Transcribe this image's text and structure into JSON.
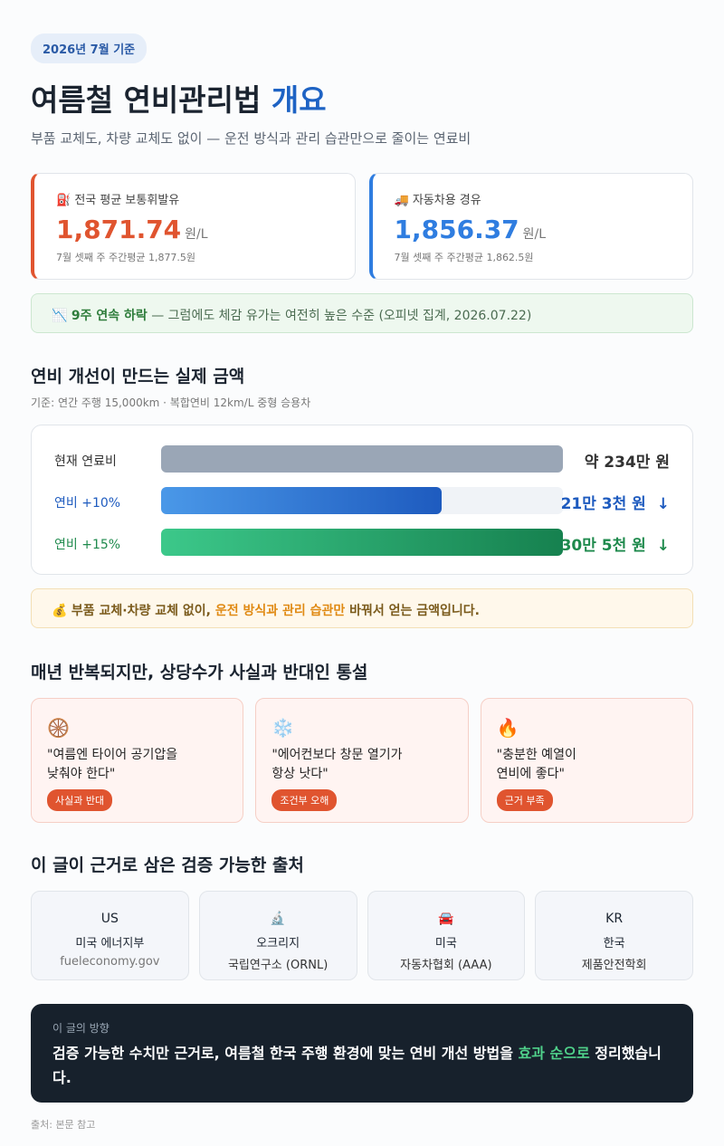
{
  "header": {
    "badge": "2026년 7월 기준",
    "title": "여름철 연비관리법 ",
    "title_highlight": "개요",
    "subtitle": "부품 교체도, 차량 교체도 없이 — 운전 방식과 관리 습관만으로 줄이는 연료비"
  },
  "prices": [
    {
      "icon": "⛽",
      "label": "전국 평균 보통휘발유",
      "price": "1,871.74",
      "unit": "원/L",
      "note": "7월 셋째 주 주간평균 1,877.5원"
    },
    {
      "icon": "🚚",
      "label": "자동차용 경유",
      "price": "1,856.37",
      "unit": "원/L",
      "note": "7월 셋째 주 주간평균 1,862.5원"
    }
  ],
  "trend_note": {
    "icon": "📉",
    "bold": "9주 연속 하락",
    "text": " — 그럼에도 체감 유가는 여전히 높은 수준 (오피넷 집계, 2026.07.22)"
  },
  "savings": {
    "title": "연비 개선이 만드는 실제 금액",
    "basis": "기준: 연간 주행 15,000km · 복합연비 12km/L 중형 승용차",
    "current": {
      "label": "현재 연료비",
      "amount": 2340000,
      "amount_label": "약 234만 원"
    },
    "rows": [
      {
        "label": "연비 +10%",
        "amount": 213000,
        "amount_label": "21만 3천 원",
        "trend": "↓"
      },
      {
        "label": "연비 +15%",
        "amount": 305000,
        "amount_label": "30만 5천 원",
        "trend": "↓"
      }
    ]
  },
  "savings_note": {
    "icon": "💰",
    "bold": "부품 교체·차량 교체 없이, ",
    "highlight": "운전 방식과 관리 습관만",
    "tail": " 바꿔서 얻는 금액입니다."
  },
  "myths": {
    "title": "매년 반복되지만, 상당수가 사실과 반대인 통설",
    "items": [
      {
        "icon": "🛞",
        "line1": "\"여름엔 타이어 공기압을",
        "line2": "낮춰야 한다\"",
        "tag": "사실과 반대"
      },
      {
        "icon": "❄️",
        "line1": "\"에어컨보다 창문 열기가",
        "line2": "항상 낫다\"",
        "tag": "조건부 오해"
      },
      {
        "icon": "🔥",
        "line1": "\"충분한 예열이",
        "line2": "연비에 좋다\"",
        "tag": "근거 부족"
      }
    ]
  },
  "sources": {
    "title": "이 글이 근거로 삼은 검증 가능한 출처",
    "items": [
      {
        "icon": "US",
        "name": "미국 에너지부",
        "sub": "fueleconomy.gov"
      },
      {
        "icon": "🔬",
        "name": "오크리지",
        "sub": "국립연구소 (ORNL)"
      },
      {
        "icon": "🚘",
        "name": "미국",
        "sub": "자동차협회 (AAA)"
      },
      {
        "icon": "KR",
        "name": "한국",
        "sub": "제품안전학회"
      }
    ]
  },
  "direction": {
    "label": "이 글의 방향",
    "text": "검증 가능한 수치만 근거로, 여름철 한국 주행 환경에 맞는 연비 개선 방법을 ",
    "highlight": "효과 순으로",
    "tail": " 정리했습니다."
  },
  "footer": "출처: 본문 참고"
}
